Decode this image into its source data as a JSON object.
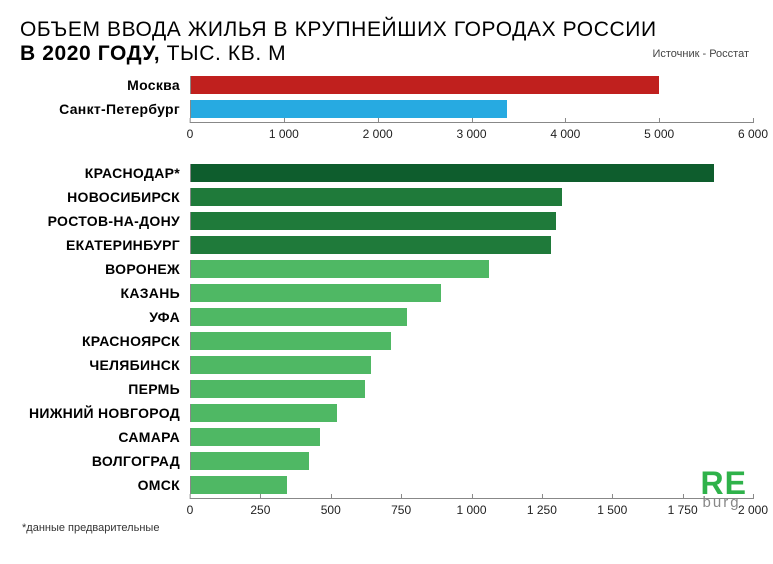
{
  "title_line1": "ОБЪЕМ ВВОДА ЖИЛЬЯ В КРУПНЕЙШИХ ГОРОДАХ РОССИИ",
  "title_line2_bold": "В 2020 ГОДУ, ",
  "title_line2_rest": "ТЫС. КВ. М",
  "title_color": "#222222",
  "source": "Источник - Росстат",
  "footnote": "*данные предварительные",
  "background_color": "#ffffff",
  "axis_color": "#888888",
  "tick_font_size": 12,
  "label_font_size": 14,
  "chart1": {
    "type": "bar-horizontal",
    "xmin": 0,
    "xmax": 6000,
    "ticks": [
      0,
      1000,
      2000,
      3000,
      4000,
      5000,
      6000
    ],
    "tick_labels": [
      "0",
      "1 000",
      "2 000",
      "3 000",
      "4 000",
      "5 000",
      "6 000"
    ],
    "bars": [
      {
        "label": "Москва",
        "value": 5000,
        "color": "#c0201e"
      },
      {
        "label": "Санкт-Петербург",
        "value": 3370,
        "color": "#27aae1"
      }
    ]
  },
  "chart2": {
    "type": "bar-horizontal",
    "xmin": 0,
    "xmax": 2000,
    "ticks": [
      0,
      250,
      500,
      750,
      1000,
      1250,
      1500,
      1750,
      2000
    ],
    "tick_labels": [
      "0",
      "250",
      "500",
      "750",
      "1 000",
      "1 250",
      "1 500",
      "1 750",
      "2 000"
    ],
    "bars": [
      {
        "label": "КРАСНОДАР*",
        "value": 1860,
        "color": "#0e5d2d"
      },
      {
        "label": "НОВОСИБИРСК",
        "value": 1320,
        "color": "#1f7a3a"
      },
      {
        "label": "РОСТОВ-НА-ДОНУ",
        "value": 1300,
        "color": "#1f7a3a"
      },
      {
        "label": "ЕКАТЕРИНБУРГ",
        "value": 1280,
        "color": "#1f7a3a"
      },
      {
        "label": "ВОРОНЕЖ",
        "value": 1060,
        "color": "#4fb864"
      },
      {
        "label": "КАЗАНЬ",
        "value": 890,
        "color": "#4fb864"
      },
      {
        "label": "УФА",
        "value": 770,
        "color": "#4fb864"
      },
      {
        "label": "КРАСНОЯРСК",
        "value": 710,
        "color": "#4fb864"
      },
      {
        "label": "ЧЕЛЯБИНСК",
        "value": 640,
        "color": "#4fb864"
      },
      {
        "label": "ПЕРМЬ",
        "value": 620,
        "color": "#4fb864"
      },
      {
        "label": "НИЖНИЙ НОВГОРОД",
        "value": 520,
        "color": "#4fb864"
      },
      {
        "label": "САМАРА",
        "value": 460,
        "color": "#4fb864"
      },
      {
        "label": "ВОЛГОГРАД",
        "value": 420,
        "color": "#4fb864"
      },
      {
        "label": "ОМСК",
        "value": 340,
        "color": "#4fb864"
      }
    ]
  },
  "logo": {
    "line1": "RE",
    "line2": "burg",
    "color1": "#2fb24a",
    "color2": "#888888"
  }
}
